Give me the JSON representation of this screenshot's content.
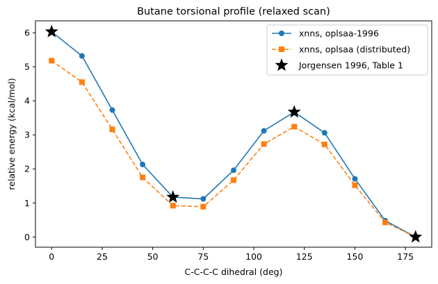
{
  "chart_data": {
    "type": "line",
    "title": "Butane torsional profile (relaxed scan)",
    "xlabel": "C-C-C-C dihedral (deg)",
    "ylabel": "relative energy (kcal/mol)",
    "xlim": [
      -8,
      188
    ],
    "ylim": [
      -0.3,
      6.35
    ],
    "xticks": [
      0,
      25,
      50,
      75,
      100,
      125,
      150,
      175
    ],
    "yticks": [
      0,
      1,
      2,
      3,
      4,
      5,
      6
    ],
    "grid": false,
    "legend_position": "top-right",
    "series": [
      {
        "name": "xnns, oplsaa-1996",
        "style": "solid",
        "marker": "circle",
        "color": "#1f77b4",
        "x": [
          0,
          15,
          30,
          45,
          60,
          75,
          90,
          105,
          120,
          135,
          150,
          165,
          180
        ],
        "y": [
          6.03,
          5.32,
          3.73,
          2.13,
          1.17,
          1.12,
          1.96,
          3.12,
          3.67,
          3.06,
          1.71,
          0.48,
          0.0
        ]
      },
      {
        "name": "xnns, oplsaa (distributed)",
        "style": "dashed",
        "marker": "square",
        "color": "#ff7f0e",
        "x": [
          0,
          15,
          30,
          45,
          60,
          75,
          90,
          105,
          120,
          135,
          150,
          165,
          180
        ],
        "y": [
          5.18,
          4.55,
          3.16,
          1.75,
          0.92,
          0.89,
          1.67,
          2.73,
          3.24,
          2.72,
          1.52,
          0.43,
          0.0
        ]
      },
      {
        "name": "Jorgensen 1996, Table 1",
        "style": "none",
        "marker": "star",
        "color": "#000000",
        "x": [
          0,
          60,
          120,
          180
        ],
        "y": [
          6.03,
          1.17,
          3.67,
          0.0
        ]
      }
    ]
  }
}
